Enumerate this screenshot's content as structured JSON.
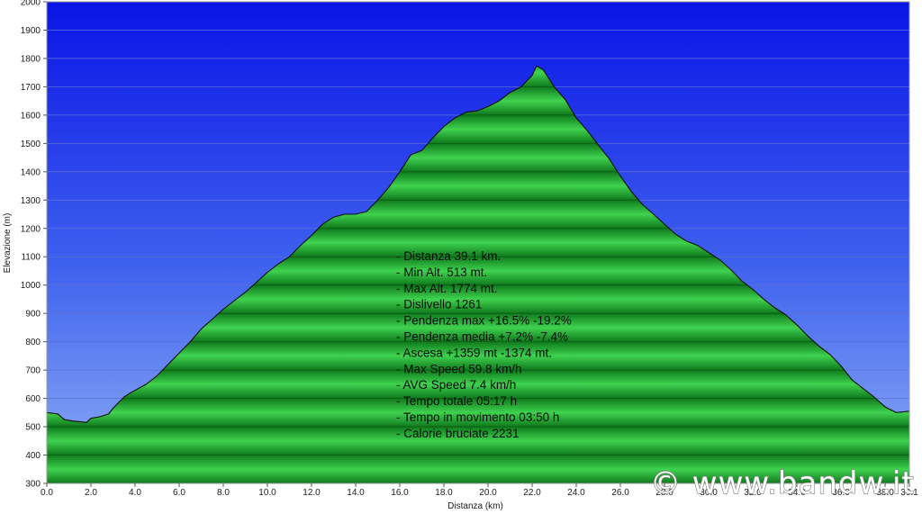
{
  "chart_data": {
    "type": "area",
    "xlabel": "Distanza   (km)",
    "ylabel": "Elevazione (m)",
    "xlim": [
      0,
      39.1
    ],
    "ylim": [
      300,
      2000
    ],
    "xticks": [
      "0.0",
      "2.0",
      "4.0",
      "6.0",
      "8.0",
      "10.0",
      "12.0",
      "14.0",
      "16.0",
      "18.0",
      "20.0",
      "22.0",
      "24.0",
      "26.0",
      "28.0",
      "30.0",
      "32.0",
      "34.0",
      "36.0",
      "38.0",
      "39.1"
    ],
    "yticks": [
      "300",
      "400",
      "500",
      "600",
      "700",
      "800",
      "900",
      "1000",
      "1100",
      "1200",
      "1300",
      "1400",
      "1500",
      "1600",
      "1700",
      "1800",
      "1900",
      "2000"
    ],
    "grid": true,
    "colors": {
      "sky_top": "#0a14e6",
      "sky_bottom": "#7fa2f2",
      "fill_light": "#3fd24f",
      "fill_dark": "#0f7a1c",
      "outline": "#0d0d0d"
    },
    "x": [
      0.0,
      0.5,
      0.8,
      1.2,
      1.5,
      1.8,
      2.0,
      2.4,
      2.8,
      3.0,
      3.5,
      3.8,
      4.5,
      5.0,
      5.5,
      6.0,
      6.5,
      7.0,
      7.5,
      8.0,
      8.5,
      9.0,
      9.5,
      10.0,
      10.5,
      11.0,
      11.5,
      12.0,
      12.5,
      13.0,
      13.5,
      14.0,
      14.5,
      15.0,
      15.5,
      16.0,
      16.5,
      17.0,
      17.5,
      18.0,
      18.5,
      19.0,
      19.5,
      20.0,
      20.5,
      21.0,
      21.5,
      22.0,
      22.2,
      22.5,
      23.0,
      23.5,
      24.0,
      24.5,
      25.0,
      25.5,
      26.0,
      26.5,
      27.0,
      27.5,
      28.0,
      28.5,
      29.0,
      29.5,
      30.0,
      30.5,
      31.0,
      31.5,
      32.0,
      32.5,
      33.0,
      33.5,
      34.0,
      34.5,
      35.0,
      35.5,
      36.0,
      36.5,
      37.0,
      37.5,
      38.0,
      38.5,
      39.1
    ],
    "series": [
      {
        "values": [
          550,
          545,
          525,
          520,
          518,
          515,
          530,
          535,
          545,
          565,
          605,
          620,
          650,
          680,
          720,
          760,
          800,
          845,
          880,
          915,
          945,
          975,
          1010,
          1045,
          1075,
          1100,
          1140,
          1175,
          1215,
          1240,
          1250,
          1250,
          1260,
          1300,
          1345,
          1400,
          1460,
          1475,
          1520,
          1560,
          1590,
          1610,
          1615,
          1630,
          1650,
          1680,
          1700,
          1740,
          1774,
          1760,
          1700,
          1655,
          1590,
          1545,
          1495,
          1445,
          1385,
          1330,
          1285,
          1250,
          1215,
          1180,
          1155,
          1140,
          1115,
          1090,
          1055,
          1015,
          985,
          950,
          920,
          895,
          860,
          820,
          785,
          755,
          715,
          665,
          635,
          605,
          570,
          550,
          555
        ]
      }
    ]
  },
  "stats": [
    "- Distanza 39.1 km.",
    "- Min Alt. 513 mt.",
    "- Max Alt. 1774 mt.",
    "- Dislivello 1261",
    "- Pendenza max +16.5% -19.2%",
    "- Pendenza media +7.2% -7.4%",
    "- Ascesa +1359 mt -1374 mt.",
    "- Max Speed 59.8 km/h",
    "- AVG Speed 7.4 km/h",
    "- Tempo totale 05:17 h",
    "- Tempo in movimento 03:50 h",
    "- Calorie bruciate 2231"
  ],
  "watermark": "© www.bandw.it"
}
